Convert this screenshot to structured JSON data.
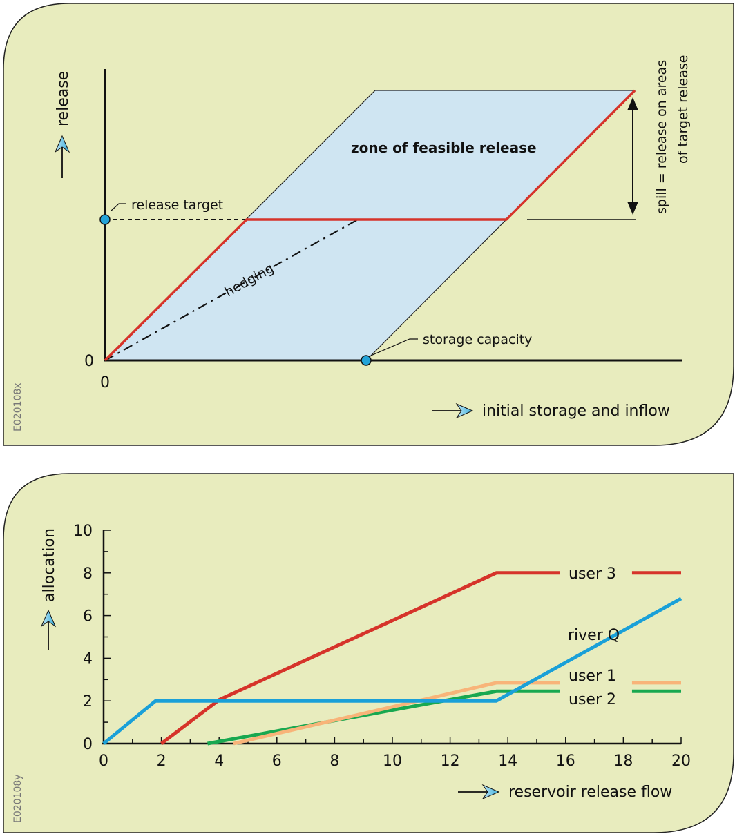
{
  "colors": {
    "panel_bg": "#e8ecbe",
    "feasible_zone": "#cfe5f2",
    "red": "#d6332a",
    "blue": "#1aa0d8",
    "orange": "#f8b479",
    "green": "#18a850",
    "axis": "#111111",
    "marker": "#23a3d8"
  },
  "panel1": {
    "code": "E020108x",
    "y_axis_label": "release",
    "x_axis_label": "initial storage and inflow",
    "origin_x": "0",
    "origin_y": "0",
    "zone_label": "zone of feasible release",
    "release_target_label": "release target",
    "storage_capacity_label": "storage capacity",
    "hedging_label": "hedging",
    "spill_line1": "spill = release on areas",
    "spill_line2": "of target release"
  },
  "panel2": {
    "code": "E020108y",
    "y_axis_label": "allocation",
    "x_axis_label": "reservoir release flow",
    "chart_data": {
      "type": "line",
      "xlabel": "reservoir release flow",
      "ylabel": "allocation",
      "xlim": [
        0,
        20
      ],
      "ylim": [
        0,
        10
      ],
      "x_ticks": [
        0,
        2,
        4,
        6,
        8,
        10,
        12,
        14,
        16,
        18,
        20
      ],
      "y_ticks": [
        0,
        2,
        4,
        6,
        8,
        10
      ],
      "series": [
        {
          "name": "user 3",
          "color": "#d6332a",
          "x": [
            2,
            4,
            13.6,
            15.8
          ],
          "y": [
            0,
            2.05,
            8,
            8
          ]
        },
        {
          "name": "user 3",
          "color": "#d6332a",
          "x": [
            18.3,
            20
          ],
          "y": [
            8,
            8
          ]
        },
        {
          "name": "river Q",
          "color": "#1aa0d8",
          "x": [
            0,
            1.8,
            13.6,
            20
          ],
          "y": [
            0,
            2,
            2,
            6.8
          ]
        },
        {
          "name": "user 1",
          "color": "#f8b479",
          "x": [
            4.5,
            13.6,
            15.8
          ],
          "y": [
            0,
            2.85,
            2.85
          ]
        },
        {
          "name": "user 1",
          "color": "#f8b479",
          "x": [
            18.3,
            20
          ],
          "y": [
            2.85,
            2.85
          ]
        },
        {
          "name": "user 2",
          "color": "#18a850",
          "x": [
            3.6,
            13.6,
            15.8
          ],
          "y": [
            0,
            2.45,
            2.45
          ]
        },
        {
          "name": "user 2",
          "color": "#18a850",
          "x": [
            18.3,
            20
          ],
          "y": [
            2.45,
            2.45
          ]
        }
      ],
      "labels": [
        "user 3",
        "river Q",
        "user 1",
        "user 2"
      ]
    }
  }
}
